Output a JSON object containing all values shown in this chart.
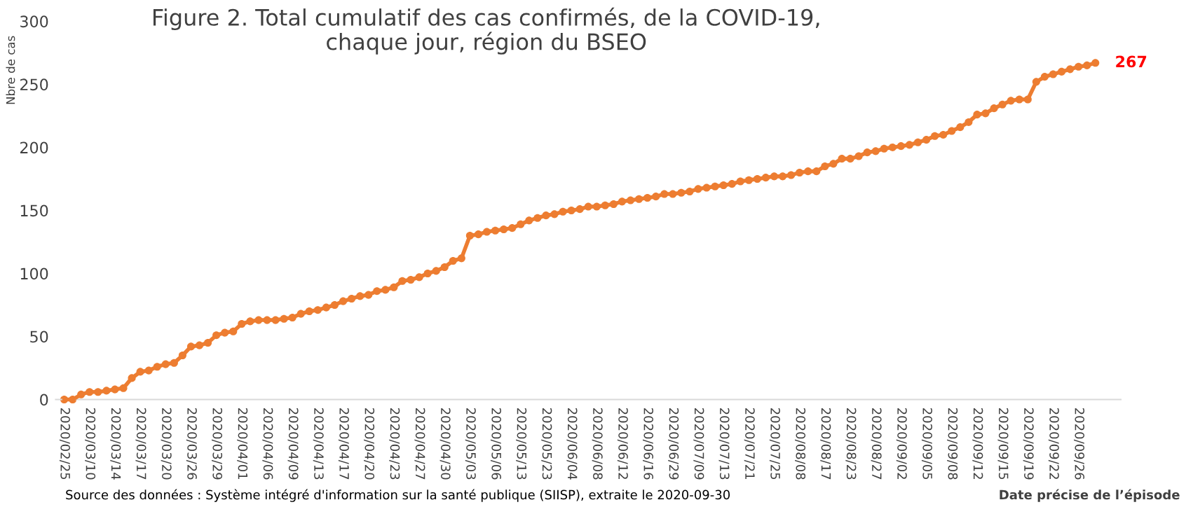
{
  "chart_data": {
    "type": "line",
    "title": "Figure 2. Total cumulatif des cas confirmés, de la COVID-19,\nchaque jour, région du BSEO",
    "xlabel": "Date précise de l’épisode",
    "ylabel": "Nbre de cas",
    "annotations": [
      "Source des données : Système intégré d'information sur la santé publique (SIISP), extraite le 2020-09-30"
    ],
    "categories": [
      "2020/02/25",
      null,
      null,
      "2020/03/10",
      null,
      null,
      "2020/03/14",
      null,
      null,
      "2020/03/17",
      null,
      null,
      "2020/03/20",
      null,
      null,
      "2020/03/26",
      null,
      null,
      "2020/03/29",
      null,
      null,
      "2020/04/01",
      null,
      null,
      "2020/04/06",
      null,
      null,
      "2020/04/09",
      null,
      null,
      "2020/04/13",
      null,
      null,
      "2020/04/17",
      null,
      null,
      "2020/04/20",
      null,
      null,
      "2020/04/23",
      null,
      null,
      "2020/04/27",
      null,
      null,
      "2020/04/30",
      null,
      null,
      "2020/05/03",
      null,
      null,
      "2020/05/06",
      null,
      null,
      "2020/05/13",
      null,
      null,
      "2020/05/23",
      null,
      null,
      "2020/06/04",
      null,
      null,
      "2020/06/08",
      null,
      null,
      "2020/06/12",
      null,
      null,
      "2020/06/16",
      null,
      null,
      "2020/06/29",
      null,
      null,
      "2020/07/09",
      null,
      null,
      "2020/07/13",
      null,
      null,
      "2020/07/21",
      null,
      null,
      "2020/07/25",
      null,
      null,
      "2020/08/08",
      null,
      null,
      "2020/08/17",
      null,
      null,
      "2020/08/23",
      null,
      null,
      "2020/08/27",
      null,
      null,
      "2020/09/02",
      null,
      null,
      "2020/09/05",
      null,
      null,
      "2020/09/08",
      null,
      null,
      "2020/09/12",
      null,
      null,
      "2020/09/15",
      null,
      null,
      "2020/09/19",
      null,
      null,
      "2020/09/22",
      null,
      null,
      "2020/09/26",
      null,
      null
    ],
    "series": [
      {
        "color": "#ed7d31",
        "values": [
          0,
          0,
          4,
          6,
          6,
          7,
          8,
          9,
          17,
          22,
          23,
          26,
          28,
          29,
          35,
          42,
          43,
          45,
          51,
          53,
          54,
          60,
          62,
          63,
          63,
          63,
          64,
          65,
          68,
          70,
          71,
          73,
          75,
          78,
          80,
          82,
          83,
          86,
          87,
          89,
          94,
          95,
          97,
          100,
          102,
          105,
          110,
          112,
          130,
          131,
          133,
          134,
          135,
          136,
          139,
          142,
          144,
          146,
          147,
          149,
          150,
          151,
          153,
          153,
          154,
          155,
          157,
          158,
          159,
          160,
          161,
          163,
          163,
          164,
          165,
          167,
          168,
          169,
          170,
          171,
          173,
          174,
          175,
          176,
          177,
          177,
          178,
          180,
          181,
          181,
          185,
          187,
          191,
          191,
          193,
          196,
          197,
          199,
          200,
          201,
          202,
          204,
          206,
          209,
          210,
          213,
          216,
          220,
          226,
          227,
          231,
          234,
          237,
          238,
          238,
          252,
          256,
          258,
          260,
          262,
          264,
          265,
          267
        ],
        "value_labels": [
          null,
          null,
          null,
          null,
          null,
          null,
          null,
          null,
          null,
          null,
          null,
          null,
          null,
          null,
          null,
          null,
          null,
          null,
          null,
          null,
          null,
          null,
          null,
          null,
          null,
          null,
          null,
          null,
          null,
          null,
          null,
          null,
          null,
          null,
          null,
          null,
          null,
          null,
          null,
          null,
          null,
          null,
          null,
          null,
          null,
          null,
          null,
          null,
          null,
          null,
          null,
          null,
          null,
          null,
          null,
          null,
          null,
          null,
          null,
          null,
          null,
          null,
          null,
          null,
          null,
          null,
          null,
          null,
          null,
          null,
          null,
          null,
          null,
          null,
          null,
          null,
          null,
          null,
          null,
          null,
          null,
          null,
          null,
          null,
          null,
          null,
          null,
          null,
          null,
          null,
          null,
          null,
          null,
          null,
          null,
          null,
          null,
          null,
          null,
          null,
          null,
          null,
          null,
          null,
          null,
          null,
          null,
          null,
          null,
          null,
          null,
          null,
          null,
          null,
          null,
          null,
          null,
          null,
          null,
          null,
          null,
          null,
          "267"
        ]
      }
    ],
    "ylim": [
      0,
      300
    ],
    "yticks": [
      0,
      50,
      100,
      150,
      200,
      250,
      300
    ],
    "marker": "circle",
    "line_style": "solid",
    "grid": false,
    "legend": false
  }
}
